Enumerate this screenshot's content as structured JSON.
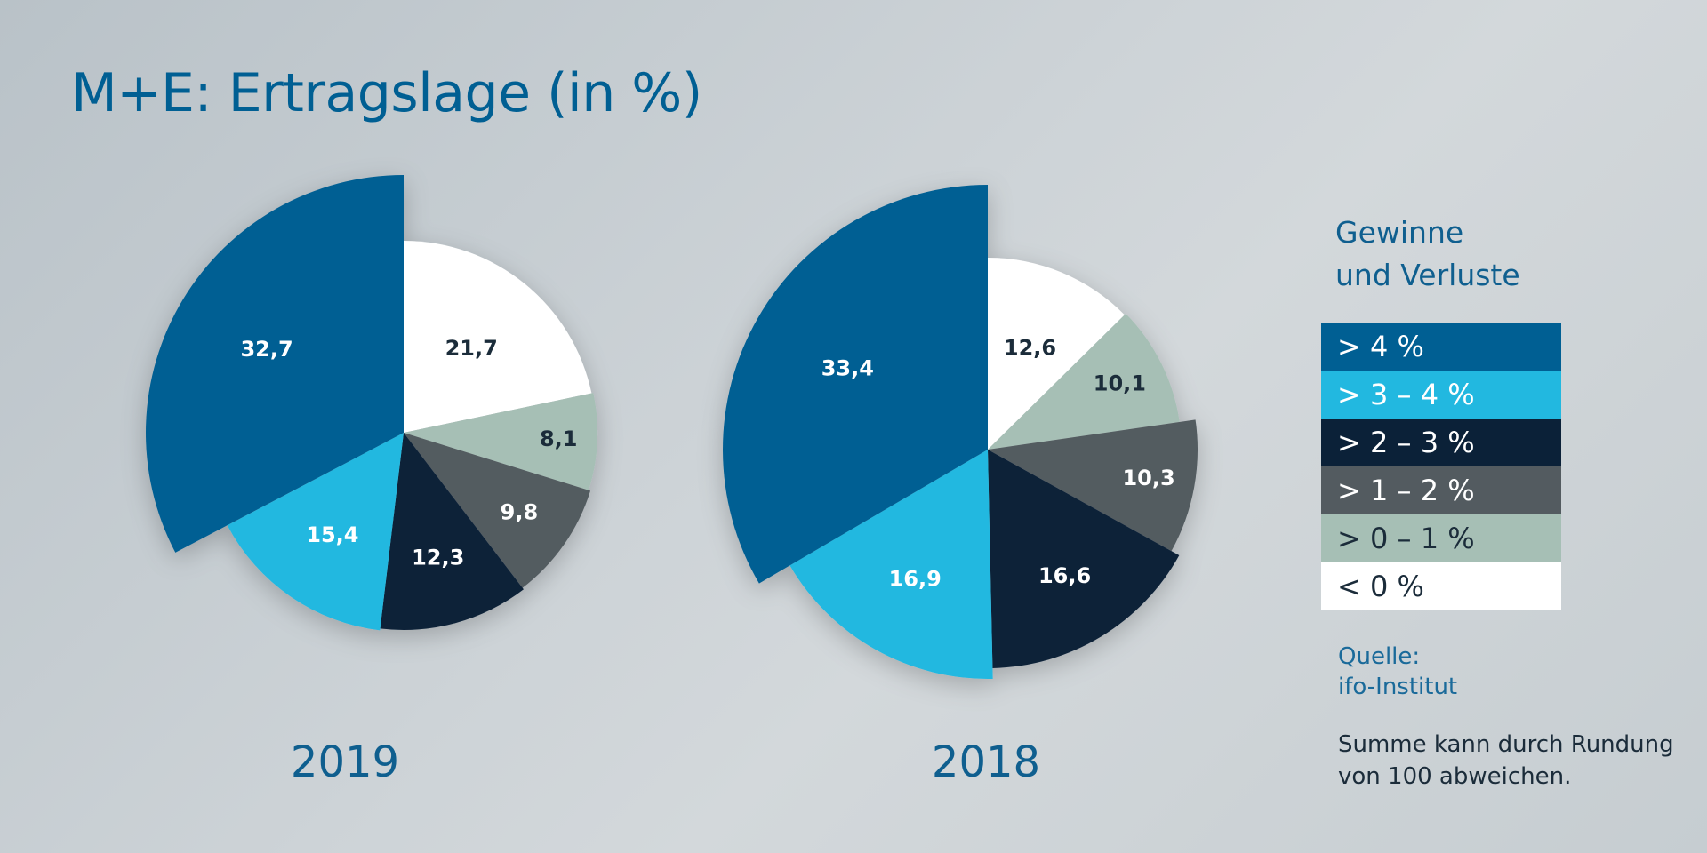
{
  "title": "M+E: Ertragslage (in %)",
  "legend": {
    "title_line1": "Gewinne",
    "title_line2": "und Verluste",
    "items": [
      {
        "label": "> 4 %",
        "color": "#005f93",
        "text_color": "#ffffff"
      },
      {
        "label": "> 3 – 4 %",
        "color": "#22b8e0",
        "text_color": "#ffffff"
      },
      {
        "label": "> 2 – 3 %",
        "color": "#0b2138",
        "text_color": "#ffffff"
      },
      {
        "label": "> 1 – 2 %",
        "color": "#535b60",
        "text_color": "#ffffff"
      },
      {
        "label": "> 0 – 1 %",
        "color": "#a6bfb5",
        "text_color": "#1b2c3a"
      },
      {
        "label": "< 0 %",
        "color": "#ffffff",
        "text_color": "#1b2c3a"
      }
    ]
  },
  "source": {
    "line1": "Quelle:",
    "line2": "ifo-Institut"
  },
  "note": {
    "line1": "Summe kann durch Rundung",
    "line2": "von 100 abweichen."
  },
  "chart_data": [
    {
      "type": "pie",
      "year": "2019",
      "slices": [
        {
          "label": "< 0 %",
          "value": 21.7,
          "display": "21,7"
        },
        {
          "label": "> 0 – 1 %",
          "value": 8.1,
          "display": "8,1"
        },
        {
          "label": "> 1 – 2 %",
          "value": 9.8,
          "display": "9,8"
        },
        {
          "label": "> 2 – 3 %",
          "value": 12.3,
          "display": "12,3"
        },
        {
          "label": "> 3 – 4 %",
          "value": 15.4,
          "display": "15,4"
        },
        {
          "label": "> 4 %",
          "value": 32.7,
          "display": "32,7"
        }
      ]
    },
    {
      "type": "pie",
      "year": "2018",
      "slices": [
        {
          "label": "< 0 %",
          "value": 12.6,
          "display": "12,6"
        },
        {
          "label": "> 0 – 1 %",
          "value": 10.1,
          "display": "10,1"
        },
        {
          "label": "> 1 – 2 %",
          "value": 10.3,
          "display": "10,3"
        },
        {
          "label": "> 2 – 3 %",
          "value": 16.6,
          "display": "16,6"
        },
        {
          "label": "> 3 – 4 %",
          "value": 16.9,
          "display": "16,9"
        },
        {
          "label": "> 4 %",
          "value": 33.4,
          "display": "33,4"
        }
      ]
    }
  ]
}
